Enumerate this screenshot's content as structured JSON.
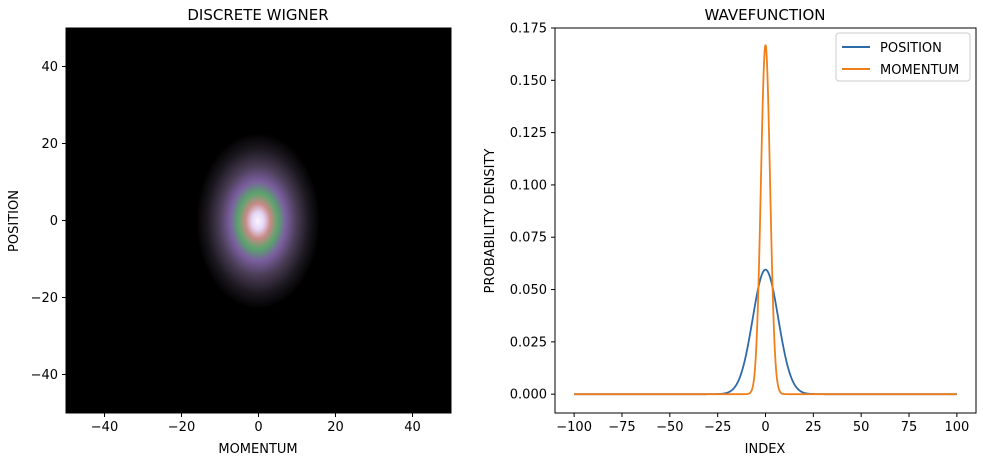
{
  "chart_data": [
    {
      "type": "heatmap",
      "title": "DISCRETE WIGNER",
      "xlabel": "MOMENTUM",
      "ylabel": "POSITION",
      "xlim": [
        -50,
        50
      ],
      "ylim": [
        -50,
        50
      ],
      "xticks": [
        -40,
        -20,
        0,
        20,
        40
      ],
      "yticks": [
        -40,
        -20,
        0,
        20,
        40
      ],
      "xtick_labels": [
        "−40",
        "−20",
        "0",
        "20",
        "40"
      ],
      "ytick_labels": [
        "−40",
        "−20",
        "0",
        "20",
        "40"
      ],
      "grid": false,
      "colormap": "cubehelix",
      "peak": {
        "momentum": 0,
        "position": 0
      },
      "spread": {
        "momentum": 6,
        "position": 9
      }
    },
    {
      "type": "line",
      "title": "WAVEFUNCTION",
      "xlabel": "INDEX",
      "ylabel": "PROBABILITY DENSITY",
      "xlim": [
        -110,
        110
      ],
      "ylim": [
        -0.009,
        0.175
      ],
      "xticks": [
        -100,
        -75,
        -50,
        -25,
        0,
        25,
        50,
        75,
        100
      ],
      "yticks": [
        0.0,
        0.025,
        0.05,
        0.075,
        0.1,
        0.125,
        0.15,
        0.175
      ],
      "xtick_labels": [
        "−100",
        "−75",
        "−50",
        "−25",
        "0",
        "25",
        "50",
        "75",
        "100"
      ],
      "ytick_labels": [
        "0.000",
        "0.025",
        "0.050",
        "0.075",
        "0.100",
        "0.125",
        "0.150",
        "0.175"
      ],
      "grid": false,
      "legend_position": "top-right",
      "x_range": [
        -100,
        100
      ],
      "series": [
        {
          "name": "POSITION",
          "color": "#2f6aa8",
          "peak": 0.0595,
          "center": 0,
          "sigma": 6.7
        },
        {
          "name": "MOMENTUM",
          "color": "#f07f1a",
          "peak": 0.167,
          "center": 0,
          "sigma": 2.4
        }
      ]
    }
  ]
}
